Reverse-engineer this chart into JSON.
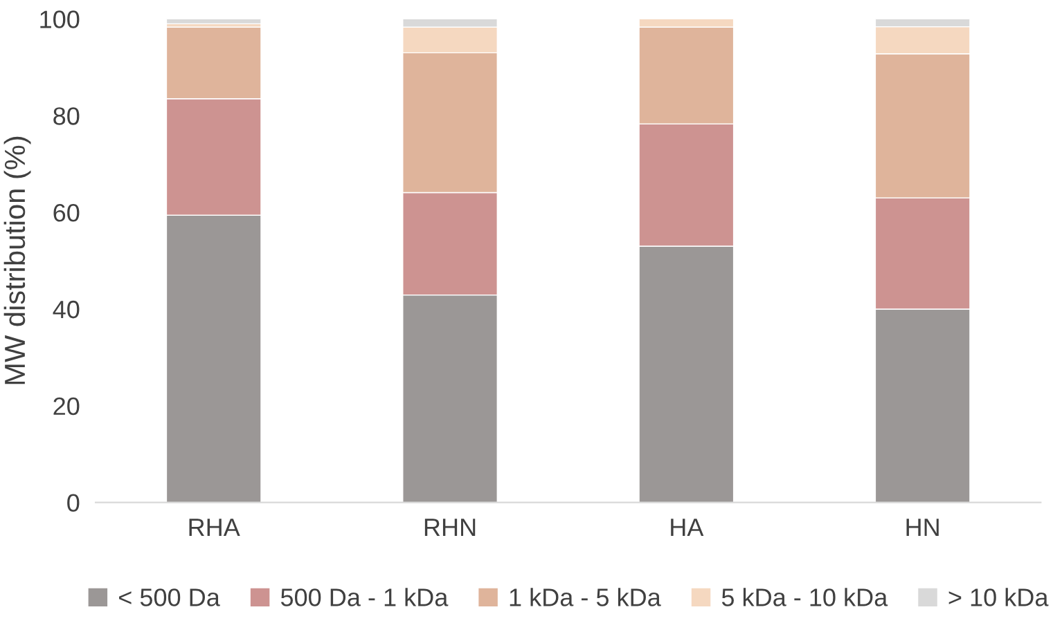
{
  "chart_data": {
    "type": "bar",
    "stacked": true,
    "ylabel": "MW distribution (%)",
    "categories": [
      "RHA",
      "RHN",
      "HA",
      "HN"
    ],
    "series": [
      {
        "name": "< 500 Da",
        "color": "#9b9796",
        "values": [
          59.4,
          42.9,
          53.0,
          40.0
        ]
      },
      {
        "name": "500 Da - 1 kDa",
        "color": "#cd9391",
        "values": [
          24.1,
          21.2,
          25.3,
          23.0
        ]
      },
      {
        "name": "1 kDa - 5 kDa",
        "color": "#dfb49b",
        "values": [
          14.8,
          28.9,
          20.0,
          29.8
        ]
      },
      {
        "name": "5 kDa - 10 kDa",
        "color": "#f5d8c0",
        "values": [
          0.7,
          5.3,
          1.7,
          5.6
        ]
      },
      {
        "name": "> 10 kDa",
        "color": "#d9d9d9",
        "values": [
          1.0,
          1.7,
          null,
          1.6
        ]
      }
    ],
    "ylim": [
      0,
      100
    ],
    "yticks": [
      0,
      20,
      40,
      60,
      80,
      100
    ],
    "grid": false,
    "legend": "bottom"
  }
}
